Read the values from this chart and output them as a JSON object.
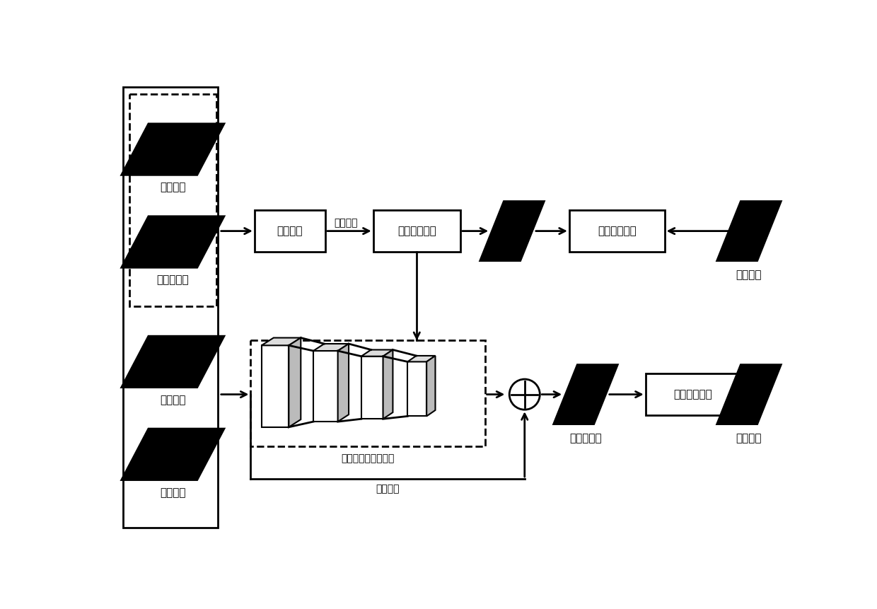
{
  "bg_color": "#ffffff",
  "fig_width": 12.4,
  "fig_height": 8.61,
  "labels": {
    "quan_se": "全色图像",
    "duo_guang": "多光谱图像",
    "ti_du": "梯度图像",
    "cha_fen": "差分图像",
    "hui_gui": "回归模型",
    "xiang_liang": "向量参数",
    "ti_qu": "提取空间信息",
    "kong_jian_bi": "空间信息损失",
    "can_zhao1": "参照图像",
    "yu_xun_lian": "预训练卷积网络模型",
    "can_jia": "残差连接",
    "rong_he": "融合后图像",
    "guang_pu_bi": "光谱信息损失",
    "can_zhao2": "参照图像"
  }
}
